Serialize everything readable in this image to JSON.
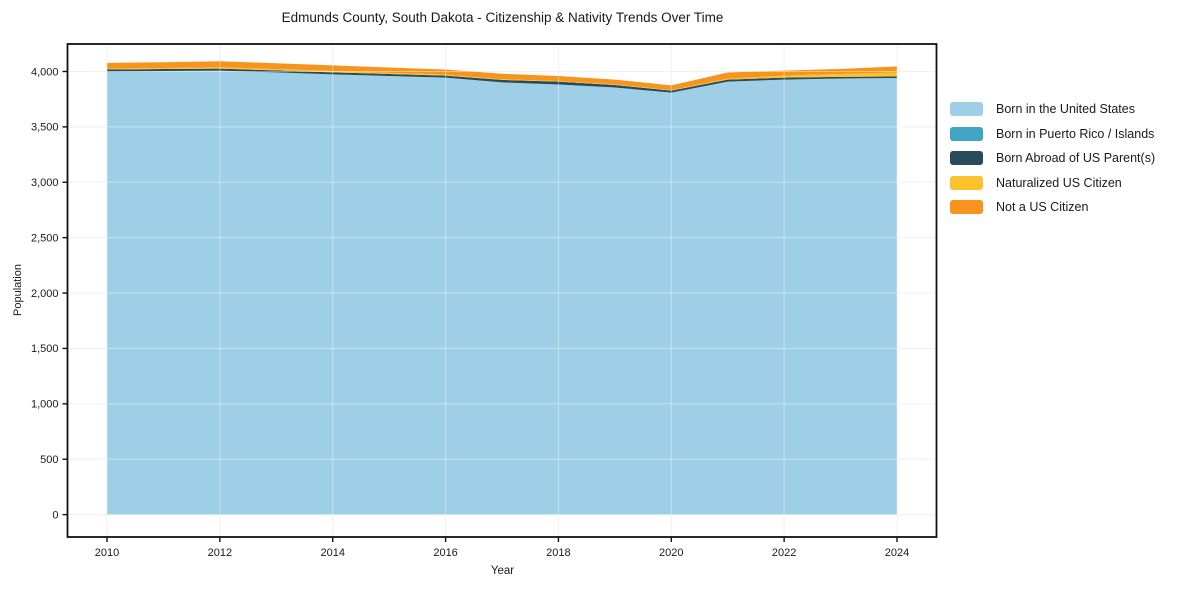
{
  "chart_data": {
    "type": "area",
    "stacked": true,
    "title": "Edmunds County, South Dakota - Citizenship & Nativity Trends Over Time",
    "xlabel": "Year",
    "ylabel": "Population",
    "x": [
      2010,
      2011,
      2012,
      2013,
      2014,
      2015,
      2016,
      2017,
      2018,
      2019,
      2020,
      2021,
      2022,
      2023,
      2024
    ],
    "series": [
      {
        "name": "Born in the United States",
        "color": "#9ecfe6",
        "values": [
          4000,
          4004,
          4008,
          3992,
          3974,
          3959,
          3945,
          3901,
          3882,
          3855,
          3809,
          3909,
          3927,
          3937,
          3941
        ]
      },
      {
        "name": "Born in Puerto Rico / Islands",
        "color": "#3fa5c3",
        "values": [
          0,
          0,
          0,
          0,
          0,
          0,
          0,
          0,
          0,
          0,
          0,
          0,
          0,
          0,
          0
        ]
      },
      {
        "name": "Born Abroad of US Parent(s)",
        "color": "#254b5c",
        "values": [
          18,
          18,
          18,
          18,
          18,
          18,
          18,
          23,
          27,
          23,
          18,
          18,
          18,
          14,
          14
        ]
      },
      {
        "name": "Naturalized US Citizen",
        "color": "#fcc22d",
        "values": [
          9,
          9,
          12,
          12,
          12,
          10,
          9,
          6,
          5,
          5,
          5,
          9,
          18,
          27,
          36
        ]
      },
      {
        "name": "Not a US Citizen",
        "color": "#f7941e",
        "values": [
          50,
          52,
          55,
          52,
          51,
          49,
          46,
          50,
          45,
          44,
          42,
          55,
          45,
          45,
          55
        ]
      }
    ],
    "xticks": {
      "values": [
        2010,
        2012,
        2014,
        2016,
        2018,
        2020,
        2022,
        2024
      ],
      "labels": [
        "2010",
        "2012",
        "2014",
        "2016",
        "2018",
        "2020",
        "2022",
        "2024"
      ]
    },
    "yticks": {
      "values": [
        0,
        500,
        1000,
        1500,
        2000,
        2500,
        3000,
        3500,
        4000
      ],
      "labels": [
        "0",
        "500",
        "1,000",
        "1,500",
        "2,000",
        "2,500",
        "3,000",
        "3,500",
        "4,000"
      ]
    },
    "xlim": [
      2009.3,
      2024.7
    ],
    "ylim": [
      -202,
      4248
    ],
    "grid": true,
    "legend_position": "right of plot, no frame",
    "colors": {
      "spine": "#111111",
      "grid_under": "#e9e9e9",
      "grid_over_area": "rgba(255,255,255,0.4)",
      "text": "#1a1a1a",
      "background": "#ffffff"
    }
  }
}
